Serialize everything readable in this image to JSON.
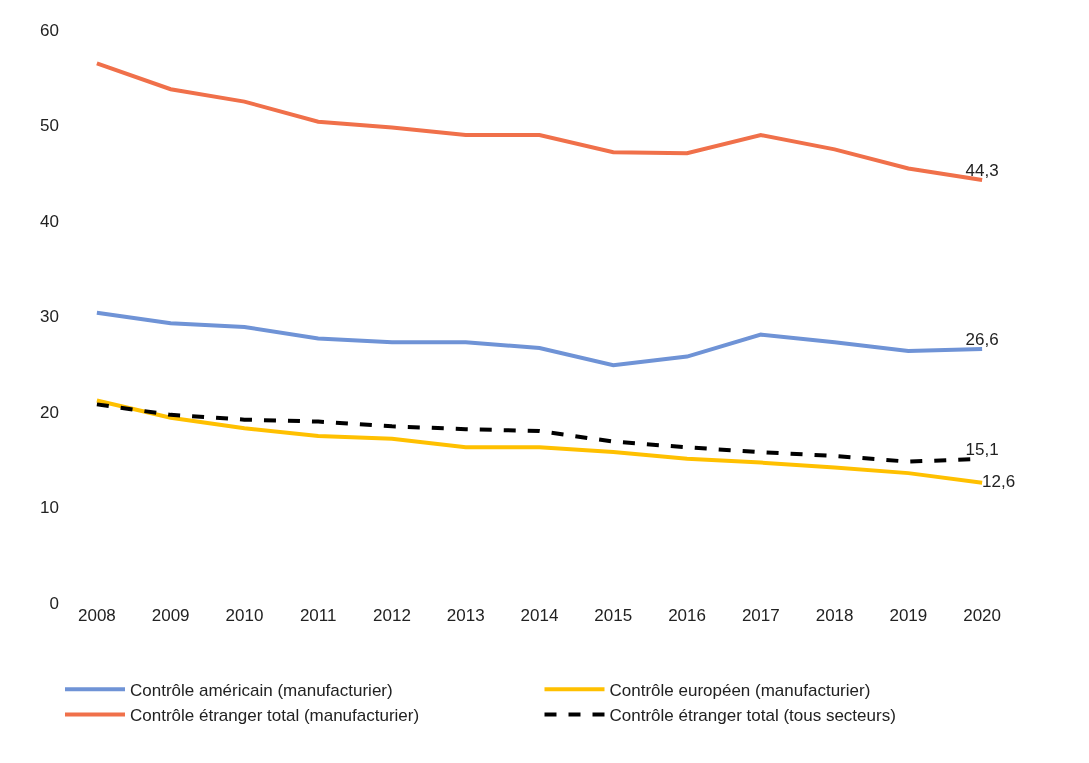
{
  "chart_data": {
    "type": "line",
    "categories": [
      "2008",
      "2009",
      "2010",
      "2011",
      "2012",
      "2013",
      "2014",
      "2015",
      "2016",
      "2017",
      "2018",
      "2019",
      "2020"
    ],
    "series": [
      {
        "name": "Contrôle américain (manufacturier)",
        "color": "#6f93d6",
        "values": [
          30.4,
          29.3,
          28.9,
          27.7,
          27.3,
          27.3,
          26.7,
          24.9,
          25.8,
          28.1,
          27.3,
          26.4,
          26.6
        ],
        "value_labels": [
          null,
          null,
          null,
          null,
          null,
          null,
          null,
          null,
          null,
          null,
          null,
          null,
          "26,6"
        ]
      },
      {
        "name": "Contrôle européen (manufacturier)",
        "color": "#ffc000",
        "values": [
          21.2,
          19.4,
          18.3,
          17.5,
          17.2,
          16.3,
          16.3,
          15.8,
          15.1,
          14.7,
          14.2,
          13.6,
          12.6
        ],
        "value_labels": [
          null,
          null,
          null,
          null,
          null,
          null,
          null,
          null,
          null,
          null,
          null,
          null,
          "12,6"
        ]
      },
      {
        "name": "Contrôle étranger total (manufacturier)",
        "color": "#f0704a",
        "values": [
          56.5,
          53.8,
          52.5,
          50.4,
          49.8,
          49.0,
          49.0,
          47.2,
          47.1,
          49.0,
          47.5,
          45.5,
          44.3
        ],
        "value_labels": [
          null,
          null,
          null,
          null,
          null,
          null,
          null,
          null,
          null,
          null,
          null,
          null,
          "44,3"
        ]
      },
      {
        "name": "Contrôle étranger total (tous secteurs)",
        "color": "#000000",
        "line_style": "dashed",
        "values": [
          20.8,
          19.7,
          19.2,
          19.0,
          18.5,
          18.2,
          18.0,
          16.9,
          16.3,
          15.8,
          15.4,
          14.8,
          15.1
        ],
        "value_labels": [
          null,
          null,
          null,
          null,
          null,
          null,
          null,
          null,
          null,
          null,
          null,
          null,
          "15,1"
        ]
      }
    ],
    "ylim": [
      0,
      60
    ],
    "yticks": [
      0,
      10,
      20,
      30,
      40,
      50,
      60
    ],
    "legend": "bottom",
    "marker": "none",
    "line_style": "solid"
  }
}
